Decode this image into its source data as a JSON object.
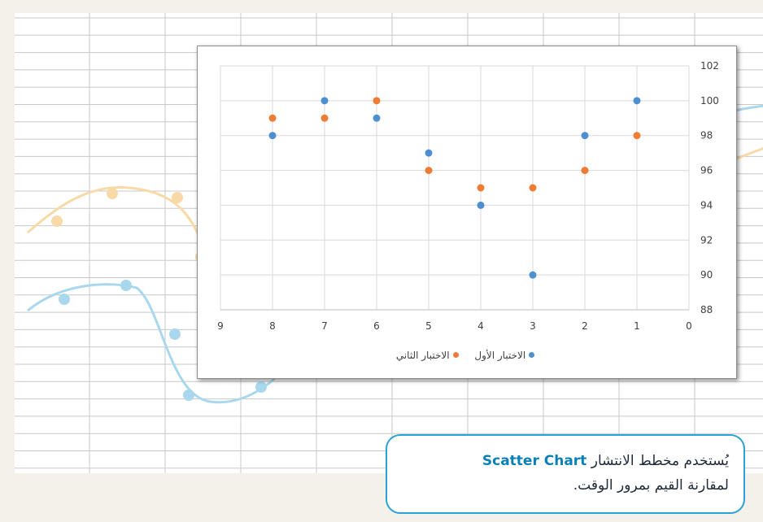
{
  "chart_data": {
    "type": "scatter",
    "x_ticks": [
      9,
      8,
      7,
      6,
      5,
      4,
      3,
      2,
      1,
      0
    ],
    "y_ticks": [
      88,
      90,
      92,
      94,
      96,
      98,
      100,
      102
    ],
    "xlim": [
      0,
      9
    ],
    "ylim": [
      88,
      102
    ],
    "x_reversed": true,
    "y_axis_side": "right",
    "grid": true,
    "legend": "bottom",
    "series": [
      {
        "name": "الاختبار الأول",
        "color": "#4e8fd0",
        "x": [
          1,
          2,
          3,
          4,
          5,
          6,
          7,
          8
        ],
        "y": [
          100,
          98,
          90,
          94,
          97,
          99,
          100,
          98
        ]
      },
      {
        "name": "الاختبار الثاني",
        "color": "#f07b35",
        "x": [
          1,
          2,
          3,
          4,
          5,
          6,
          7,
          8
        ],
        "y": [
          98,
          96,
          95,
          95,
          96,
          100,
          99,
          99
        ]
      }
    ]
  },
  "callout": {
    "text_before": "يُستخدم مخطط الانتشار ",
    "highlight": "Scatter Chart",
    "line2": "لمقارنة القيم بمرور الوقت."
  },
  "background_colors": {
    "blue_curve": "#a9d7ee",
    "orange_curve": "#f8d9a8",
    "callout_border": "#29a3d6"
  }
}
